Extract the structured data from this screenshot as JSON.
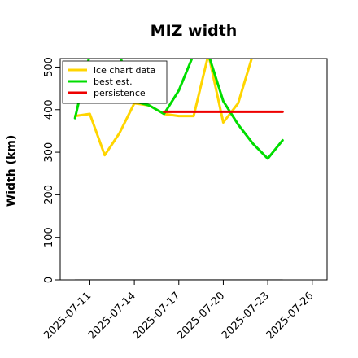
{
  "chart_data": {
    "type": "line",
    "title": "MIZ width",
    "xlabel": "",
    "ylabel": "Width (km)",
    "ylim": [
      0,
      520
    ],
    "xlim": [
      "2025-07-09",
      "2025-07-27"
    ],
    "yticks": [
      0,
      100,
      200,
      300,
      400,
      500
    ],
    "xticks": [
      "2025-07-11",
      "2025-07-14",
      "2025-07-17",
      "2025-07-20",
      "2025-07-23",
      "2025-07-26"
    ],
    "legend_position": "top-left",
    "grid": false,
    "series": [
      {
        "name": "ice chart data",
        "color": "#FFD500",
        "x": [
          "2025-07-10",
          "2025-07-11",
          "2025-07-12",
          "2025-07-13",
          "2025-07-14",
          "2025-07-15",
          "2025-07-16",
          "2025-07-17",
          "2025-07-18",
          "2025-07-19",
          "2025-07-20",
          "2025-07-21",
          "2025-07-22"
        ],
        "y": [
          385,
          390,
          293,
          345,
          415,
          410,
          390,
          385,
          385,
          530,
          370,
          415,
          530
        ]
      },
      {
        "name": "best est.",
        "color": "#00DD00",
        "x": [
          "2025-07-10",
          "2025-07-11",
          "2025-07-12",
          "2025-07-13",
          "2025-07-14",
          "2025-07-15",
          "2025-07-16",
          "2025-07-17",
          "2025-07-18",
          "2025-07-19",
          "2025-07-20",
          "2025-07-21",
          "2025-07-22",
          "2025-07-23",
          "2025-07-24"
        ],
        "y": [
          380,
          530,
          530,
          530,
          420,
          410,
          390,
          445,
          530,
          530,
          420,
          365,
          320,
          285,
          328
        ]
      },
      {
        "name": "persistence",
        "color": "#EE0000",
        "x": [
          "2025-07-16",
          "2025-07-24"
        ],
        "y": [
          395,
          395
        ]
      },
      {
        "name": "",
        "color": "#777777",
        "x": [
          "2025-07-10",
          "2025-07-24"
        ],
        "y": [
          0,
          0
        ]
      }
    ]
  }
}
